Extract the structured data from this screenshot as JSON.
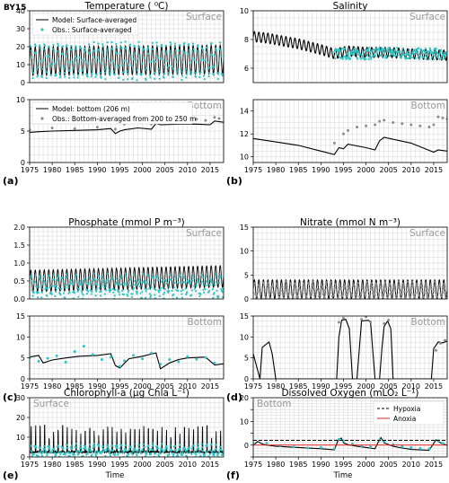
{
  "figure": {
    "station": "BY15",
    "xlabel": "Time",
    "colors": {
      "model": "#000000",
      "obs": "#2cc4c4",
      "obs_bottom": "#8c8c8c",
      "grid": "#d4d4d4",
      "tag": "#9a9a9a",
      "anoxia": "#e02020"
    }
  },
  "chart_data": [
    {
      "id": "a_top",
      "type": "line",
      "panel_label": "",
      "title": "Temperature ( ⁰C)",
      "tag": "Surface",
      "xlim": [
        1975,
        2018
      ],
      "ylim": [
        0,
        40
      ],
      "xticks": [],
      "yticks": [
        0,
        10,
        20,
        30,
        40
      ],
      "ytick_labels": [
        "0",
        "10",
        "20",
        "30",
        "40"
      ],
      "legend": [
        "Model: Surface-averaged",
        "Obs.: Surface-averaged"
      ],
      "series": [
        {
          "name": "Model: Surface-averaged",
          "kind": "seasonal",
          "mean": 12,
          "amp": 8,
          "trend": 0.02,
          "color": "#000000"
        },
        {
          "name": "Obs.: Surface-averaged",
          "kind": "obs",
          "mean": 12,
          "amp": 9,
          "noise": 2,
          "color": "#2cc4c4"
        }
      ]
    },
    {
      "id": "a_bot",
      "type": "line",
      "panel_label": "(a)",
      "title": "",
      "tag": "Bottom",
      "xlim": [
        1975,
        2018
      ],
      "ylim": [
        0,
        10
      ],
      "xticks": [
        1975,
        1980,
        1985,
        1990,
        1995,
        2000,
        2005,
        2010,
        2015
      ],
      "yticks": [
        0,
        5,
        10
      ],
      "ytick_labels": [
        "0",
        "5",
        "10"
      ],
      "legend": [
        "Model: bottom (206 m)",
        "Obs.: Bottom-averaged from 200 to 250 m"
      ],
      "series": [
        {
          "name": "Model: bottom (206 m)",
          "kind": "pts",
          "color": "#000000",
          "x": [
            1975,
            1977,
            1980,
            1985,
            1990,
            1993,
            1994,
            1995,
            1996,
            1999,
            2002,
            2003,
            2004,
            2008,
            2012,
            2015,
            2016,
            2018
          ],
          "y": [
            4.8,
            4.9,
            5.0,
            5.1,
            5.2,
            5.4,
            4.6,
            5.0,
            5.2,
            5.5,
            5.3,
            6.2,
            6.0,
            6.1,
            6.1,
            6.0,
            6.6,
            6.4
          ]
        },
        {
          "name": "Obs.: Bottom-averaged from 200 to 250 m",
          "kind": "scatter",
          "color": "#8c8c8c",
          "x": [
            1975,
            1980,
            1985,
            1990,
            1994,
            1996,
            1998,
            2000,
            2002,
            2004,
            2006,
            2008,
            2010,
            2012,
            2014,
            2016,
            2017
          ],
          "y": [
            5.2,
            5.5,
            5.4,
            5.6,
            5.3,
            6.1,
            6.4,
            6.3,
            6.1,
            6.9,
            6.8,
            6.7,
            6.8,
            6.9,
            6.7,
            7.2,
            7.0
          ]
        }
      ]
    },
    {
      "id": "b_top",
      "type": "line",
      "panel_label": "",
      "title": "Salinity",
      "tag": "Surface",
      "xlim": [
        1975,
        2018
      ],
      "ylim": [
        5,
        10
      ],
      "xticks": [],
      "yticks": [
        6,
        8,
        10
      ],
      "ytick_labels": [
        "6",
        "8",
        "10"
      ],
      "series": [
        {
          "name": "model",
          "kind": "seasonal_trend",
          "color": "#000000",
          "x": [
            1975,
            1978,
            1985,
            1990,
            1993,
            1996,
            2000,
            2005,
            2010,
            2018
          ],
          "y": [
            8.2,
            8.1,
            7.7,
            7.3,
            7.0,
            7.2,
            7.1,
            7.1,
            7.0,
            6.9
          ],
          "amp": 0.35
        },
        {
          "name": "obs",
          "kind": "obs_trend",
          "color": "#2cc4c4",
          "x": [
            1993,
            2000,
            2005,
            2010,
            2018
          ],
          "y": [
            7.0,
            7.0,
            7.1,
            7.0,
            7.0
          ],
          "noise": 0.4
        }
      ]
    },
    {
      "id": "b_bot",
      "type": "line",
      "panel_label": "(b)",
      "title": "",
      "tag": "Bottom",
      "xlim": [
        1975,
        2018
      ],
      "ylim": [
        9.5,
        15
      ],
      "xticks": [
        1975,
        1980,
        1985,
        1990,
        1995,
        2000,
        2005,
        2010,
        2015
      ],
      "yticks": [
        10,
        12,
        14
      ],
      "ytick_labels": [
        "10",
        "12",
        "14"
      ],
      "series": [
        {
          "name": "model",
          "kind": "pts",
          "color": "#000000",
          "x": [
            1975,
            1980,
            1985,
            1990,
            1993,
            1994,
            1995,
            1996,
            2000,
            2002,
            2003,
            2004,
            2010,
            2015,
            2016,
            2018
          ],
          "y": [
            11.6,
            11.3,
            11.0,
            10.5,
            10.2,
            10.8,
            10.7,
            11.1,
            10.8,
            10.6,
            11.4,
            11.7,
            11.2,
            10.4,
            10.6,
            10.5
          ]
        },
        {
          "name": "obs",
          "kind": "scatter",
          "color": "#8c8c8c",
          "x": [
            1993,
            1995,
            1996,
            1998,
            2000,
            2002,
            2003,
            2004,
            2006,
            2008,
            2010,
            2012,
            2014,
            2015,
            2016,
            2017,
            2018
          ],
          "y": [
            11.2,
            12.0,
            12.3,
            12.6,
            12.7,
            12.8,
            13.1,
            13.2,
            13.0,
            12.9,
            12.8,
            12.7,
            12.6,
            12.8,
            13.5,
            13.4,
            13.3
          ]
        }
      ]
    },
    {
      "id": "c_top",
      "type": "line",
      "panel_label": "",
      "title": "Phosphate (mmol P m⁻³)",
      "tag": "Surface",
      "xlim": [
        1975,
        2018
      ],
      "ylim": [
        0,
        2
      ],
      "xticks": [],
      "yticks": [
        0.0,
        0.5,
        1.0,
        1.5,
        2.0
      ],
      "ytick_labels": [
        "0.0",
        "0.5",
        "1.0",
        "1.5",
        "2.0"
      ],
      "series": [
        {
          "name": "model",
          "kind": "seasonal",
          "mean": 0.5,
          "amp": 0.3,
          "trend": 0.003,
          "color": "#000000"
        },
        {
          "name": "obs",
          "kind": "obs",
          "mean": 0.35,
          "amp": 0.25,
          "noise": 0.12,
          "color": "#2cc4c4"
        }
      ]
    },
    {
      "id": "c_bot",
      "type": "line",
      "panel_label": "(c)",
      "title": "",
      "tag": "Bottom",
      "xlim": [
        1975,
        2018
      ],
      "ylim": [
        0,
        15
      ],
      "xticks": [
        1975,
        1980,
        1985,
        1990,
        1995,
        2000,
        2005,
        2010,
        2015
      ],
      "yticks": [
        0,
        5,
        10,
        15
      ],
      "ytick_labels": [
        "0",
        "5",
        "10",
        "15"
      ],
      "series": [
        {
          "name": "model",
          "kind": "pts",
          "color": "#000000",
          "x": [
            1975,
            1977,
            1978,
            1980,
            1983,
            1986,
            1990,
            1993,
            1994,
            1995,
            1997,
            2000,
            2003,
            2004,
            2006,
            2008,
            2010,
            2014,
            2016,
            2018
          ],
          "y": [
            5.2,
            5.6,
            3.8,
            4.5,
            5.0,
            5.4,
            5.6,
            6.0,
            3.2,
            2.6,
            4.8,
            5.4,
            6.2,
            2.4,
            3.8,
            4.6,
            5.0,
            5.2,
            3.3,
            3.6
          ]
        },
        {
          "name": "obs",
          "kind": "scatter",
          "color": "#2cc4c4",
          "x": [
            1975,
            1977,
            1979,
            1981,
            1983,
            1985,
            1987,
            1989,
            1991,
            1993,
            1995,
            1996,
            1998,
            2000,
            2002,
            2004,
            2006,
            2008,
            2010,
            2012,
            2014,
            2016
          ],
          "y": [
            5.0,
            4.2,
            4.9,
            5.5,
            4.0,
            6.5,
            7.8,
            5.8,
            4.6,
            5.2,
            3.0,
            4.3,
            5.6,
            4.8,
            6.2,
            3.5,
            4.6,
            4.1,
            5.3,
            4.7,
            5.1,
            3.8
          ]
        }
      ]
    },
    {
      "id": "d_top",
      "type": "line",
      "panel_label": "",
      "title": "Nitrate (mmol N m⁻³)",
      "tag": "Surface",
      "xlim": [
        1975,
        2018
      ],
      "ylim": [
        0,
        15
      ],
      "xticks": [],
      "yticks": [
        0,
        5,
        10,
        15
      ],
      "ytick_labels": [
        "0",
        "5",
        "10",
        "15"
      ],
      "series": [
        {
          "name": "model",
          "kind": "seasonal",
          "mean": 2.0,
          "amp": 2.0,
          "trend": 0,
          "color": "#000000"
        },
        {
          "name": "obs",
          "kind": "obs",
          "mean": 1.5,
          "amp": 1.5,
          "noise": 0.8,
          "color": "#8c8c8c"
        }
      ]
    },
    {
      "id": "d_bot",
      "type": "line",
      "panel_label": "(d)",
      "title": "",
      "tag": "Bottom",
      "xlim": [
        1975,
        2018
      ],
      "ylim": [
        0,
        15
      ],
      "xticks": [
        1975,
        1980,
        1985,
        1990,
        1995,
        2000,
        2005,
        2010,
        2015
      ],
      "yticks": [
        0,
        5,
        10,
        15
      ],
      "ytick_labels": [
        "0",
        "5",
        "10",
        "15"
      ],
      "series": [
        {
          "name": "model",
          "kind": "pts",
          "color": "#000000",
          "x": [
            1975,
            1976.5,
            1977,
            1978.5,
            1979.2,
            1980,
            1993.5,
            1994,
            1994.6,
            1995.5,
            1996.3,
            1997,
            1998,
            1999,
            2000.5,
            2001,
            2002,
            2003,
            2003.5,
            2004,
            2004.8,
            2005.5,
            2006,
            2014.5,
            2015,
            2016,
            2017,
            2018
          ],
          "y": [
            6.0,
            0,
            7.5,
            8.8,
            6.0,
            0,
            0,
            10,
            14.0,
            14.2,
            12.0,
            0,
            0,
            13.8,
            14.0,
            13.6,
            0,
            0,
            7.0,
            12.5,
            13.8,
            12.0,
            0,
            0,
            7.2,
            8.8,
            8.6,
            9.0
          ]
        },
        {
          "name": "obs",
          "kind": "scatter",
          "color": "#8c8c8c",
          "x": [
            1994,
            1995,
            1999,
            2000,
            2001,
            2004,
            2005,
            2015.5,
            2016.5,
            2017.5
          ],
          "y": [
            13.5,
            14.5,
            14.2,
            14.8,
            13.6,
            13.2,
            14.0,
            6.8,
            8.5,
            9.2
          ]
        }
      ]
    },
    {
      "id": "e",
      "type": "line",
      "panel_label": "(e)",
      "title": "Chlorophyll-a (μg Chla L⁻¹)",
      "tag": "Surface",
      "xlim": [
        1975,
        2018
      ],
      "ylim": [
        0,
        30
      ],
      "xticks": [
        1975,
        1980,
        1985,
        1990,
        1995,
        2000,
        2005,
        2010,
        2015
      ],
      "yticks": [
        0,
        10,
        20,
        30
      ],
      "ytick_labels": [
        "0",
        "10",
        "20",
        "30"
      ],
      "series": [
        {
          "name": "model",
          "kind": "spiky",
          "base": 2,
          "peak": 11,
          "color": "#000000"
        },
        {
          "name": "obs",
          "kind": "obs",
          "mean": 3,
          "amp": 2.5,
          "noise": 1.5,
          "color": "#2cc4c4"
        }
      ]
    },
    {
      "id": "f",
      "type": "line",
      "panel_label": "(f)",
      "title": "Dissolved Oxygen (mLO₂ L⁻¹)",
      "tag": "Bottom",
      "xlim": [
        1975,
        2018
      ],
      "ylim": [
        -5,
        20
      ],
      "xticks": [
        1975,
        1980,
        1985,
        1990,
        1995,
        2000,
        2005,
        2010,
        2015
      ],
      "yticks": [
        -5,
        0,
        5,
        10,
        15,
        20
      ],
      "ytick_labels": [
        "",
        "0",
        "",
        "10",
        "",
        "20"
      ],
      "legend": [
        "Hypoxia",
        "Anoxia"
      ],
      "hlines": [
        {
          "y": 2,
          "style": "dashed",
          "color": "#000000"
        },
        {
          "y": 0,
          "style": "solid",
          "color": "#e02020"
        }
      ],
      "series": [
        {
          "name": "model",
          "kind": "pts",
          "color": "#000000",
          "x": [
            1975,
            1976,
            1977,
            1978,
            1980,
            1985,
            1990,
            1993,
            1993.8,
            1994.5,
            1995,
            1996,
            1998,
            2000,
            2002,
            2002.8,
            2003.3,
            2004,
            2006,
            2008,
            2010,
            2014,
            2015.5,
            2016,
            2017,
            2018
          ],
          "y": [
            0,
            1.5,
            0.5,
            0,
            -0.5,
            -1.0,
            -1.5,
            -2.0,
            2.0,
            3.0,
            1.0,
            0.2,
            -0.5,
            -1.0,
            -1.5,
            1.5,
            3.2,
            1.0,
            -0.5,
            -1.2,
            -1.8,
            -2.2,
            2.2,
            1.5,
            0.5,
            0.0
          ]
        },
        {
          "name": "obs",
          "kind": "scatter",
          "color": "#2cc4c4",
          "x": [
            1975,
            1978,
            1981,
            1984,
            1987,
            1990,
            1993,
            1994,
            1995,
            1997,
            1999,
            2001,
            2003,
            2004,
            2006,
            2008,
            2010,
            2012,
            2014,
            2016,
            2017
          ],
          "y": [
            0.5,
            0.8,
            -0.2,
            -0.8,
            -1.2,
            -1.0,
            -1.5,
            2.5,
            1.8,
            0.5,
            -0.3,
            -0.8,
            2.2,
            1.6,
            0.2,
            -0.6,
            -1.0,
            -1.4,
            -1.6,
            1.8,
            0.8
          ]
        }
      ]
    }
  ]
}
